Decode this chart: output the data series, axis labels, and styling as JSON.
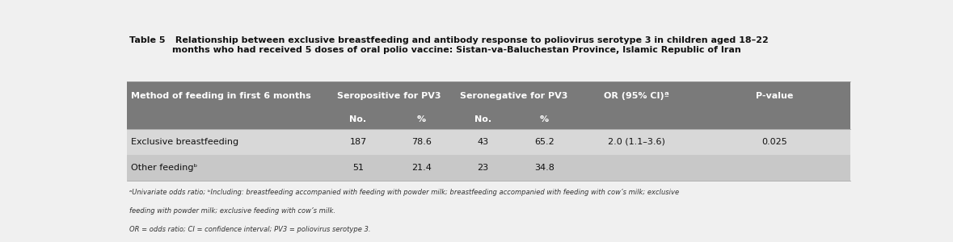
{
  "title_prefix": "Table 5",
  "title_body": " Relationship between exclusive breastfeeding and antibody response to poliovirus serotype 3 in children aged 18–22\nmonths who had received 5 doses of oral polio vaccine: Sistan-va-Baluchestan Province, Islamic Republic of Iran",
  "col_header_row1": [
    "Method of feeding in first 6 months",
    "Seropositive for PV3",
    "Seronegative for PV3",
    "OR (95% CI)ª",
    "P-value"
  ],
  "col_header_row2": [
    "No.",
    "%",
    "No.",
    "%"
  ],
  "data_rows": [
    [
      "Exclusive breastfeeding",
      "187",
      "78.6",
      "43",
      "65.2",
      "2.0 (1.1–3.6)",
      "0.025"
    ],
    [
      "Other feedingᵇ",
      "51",
      "21.4",
      "23",
      "34.8",
      "",
      ""
    ]
  ],
  "footnote1": "ᵃUnivariate odds ratio; ᵇIncluding: breastfeeding accompanied with feeding with powder milk; breastfeeding accompanied with feeding with cow’s milk; exclusive",
  "footnote2": "feeding with powder milk; exclusive feeding with cow’s milk.",
  "footnote3": "OR = odds ratio; CI = confidence interval; PV3 = poliovirus serotype 3.",
  "header_bg": "#7a7a7a",
  "row1_bg": "#d8d8d8",
  "row2_bg": "#c8c8c8",
  "outer_bg": "#f0f0f0",
  "border_color": "#999999",
  "header_text_color": "#ffffff",
  "data_text_color": "#111111",
  "title_color": "#111111",
  "footnote_color": "#333333",
  "title_prefix_size": 8.0,
  "title_body_size": 8.0,
  "header_fontsize": 8.0,
  "data_fontsize": 8.0,
  "footnote_fontsize": 6.0
}
